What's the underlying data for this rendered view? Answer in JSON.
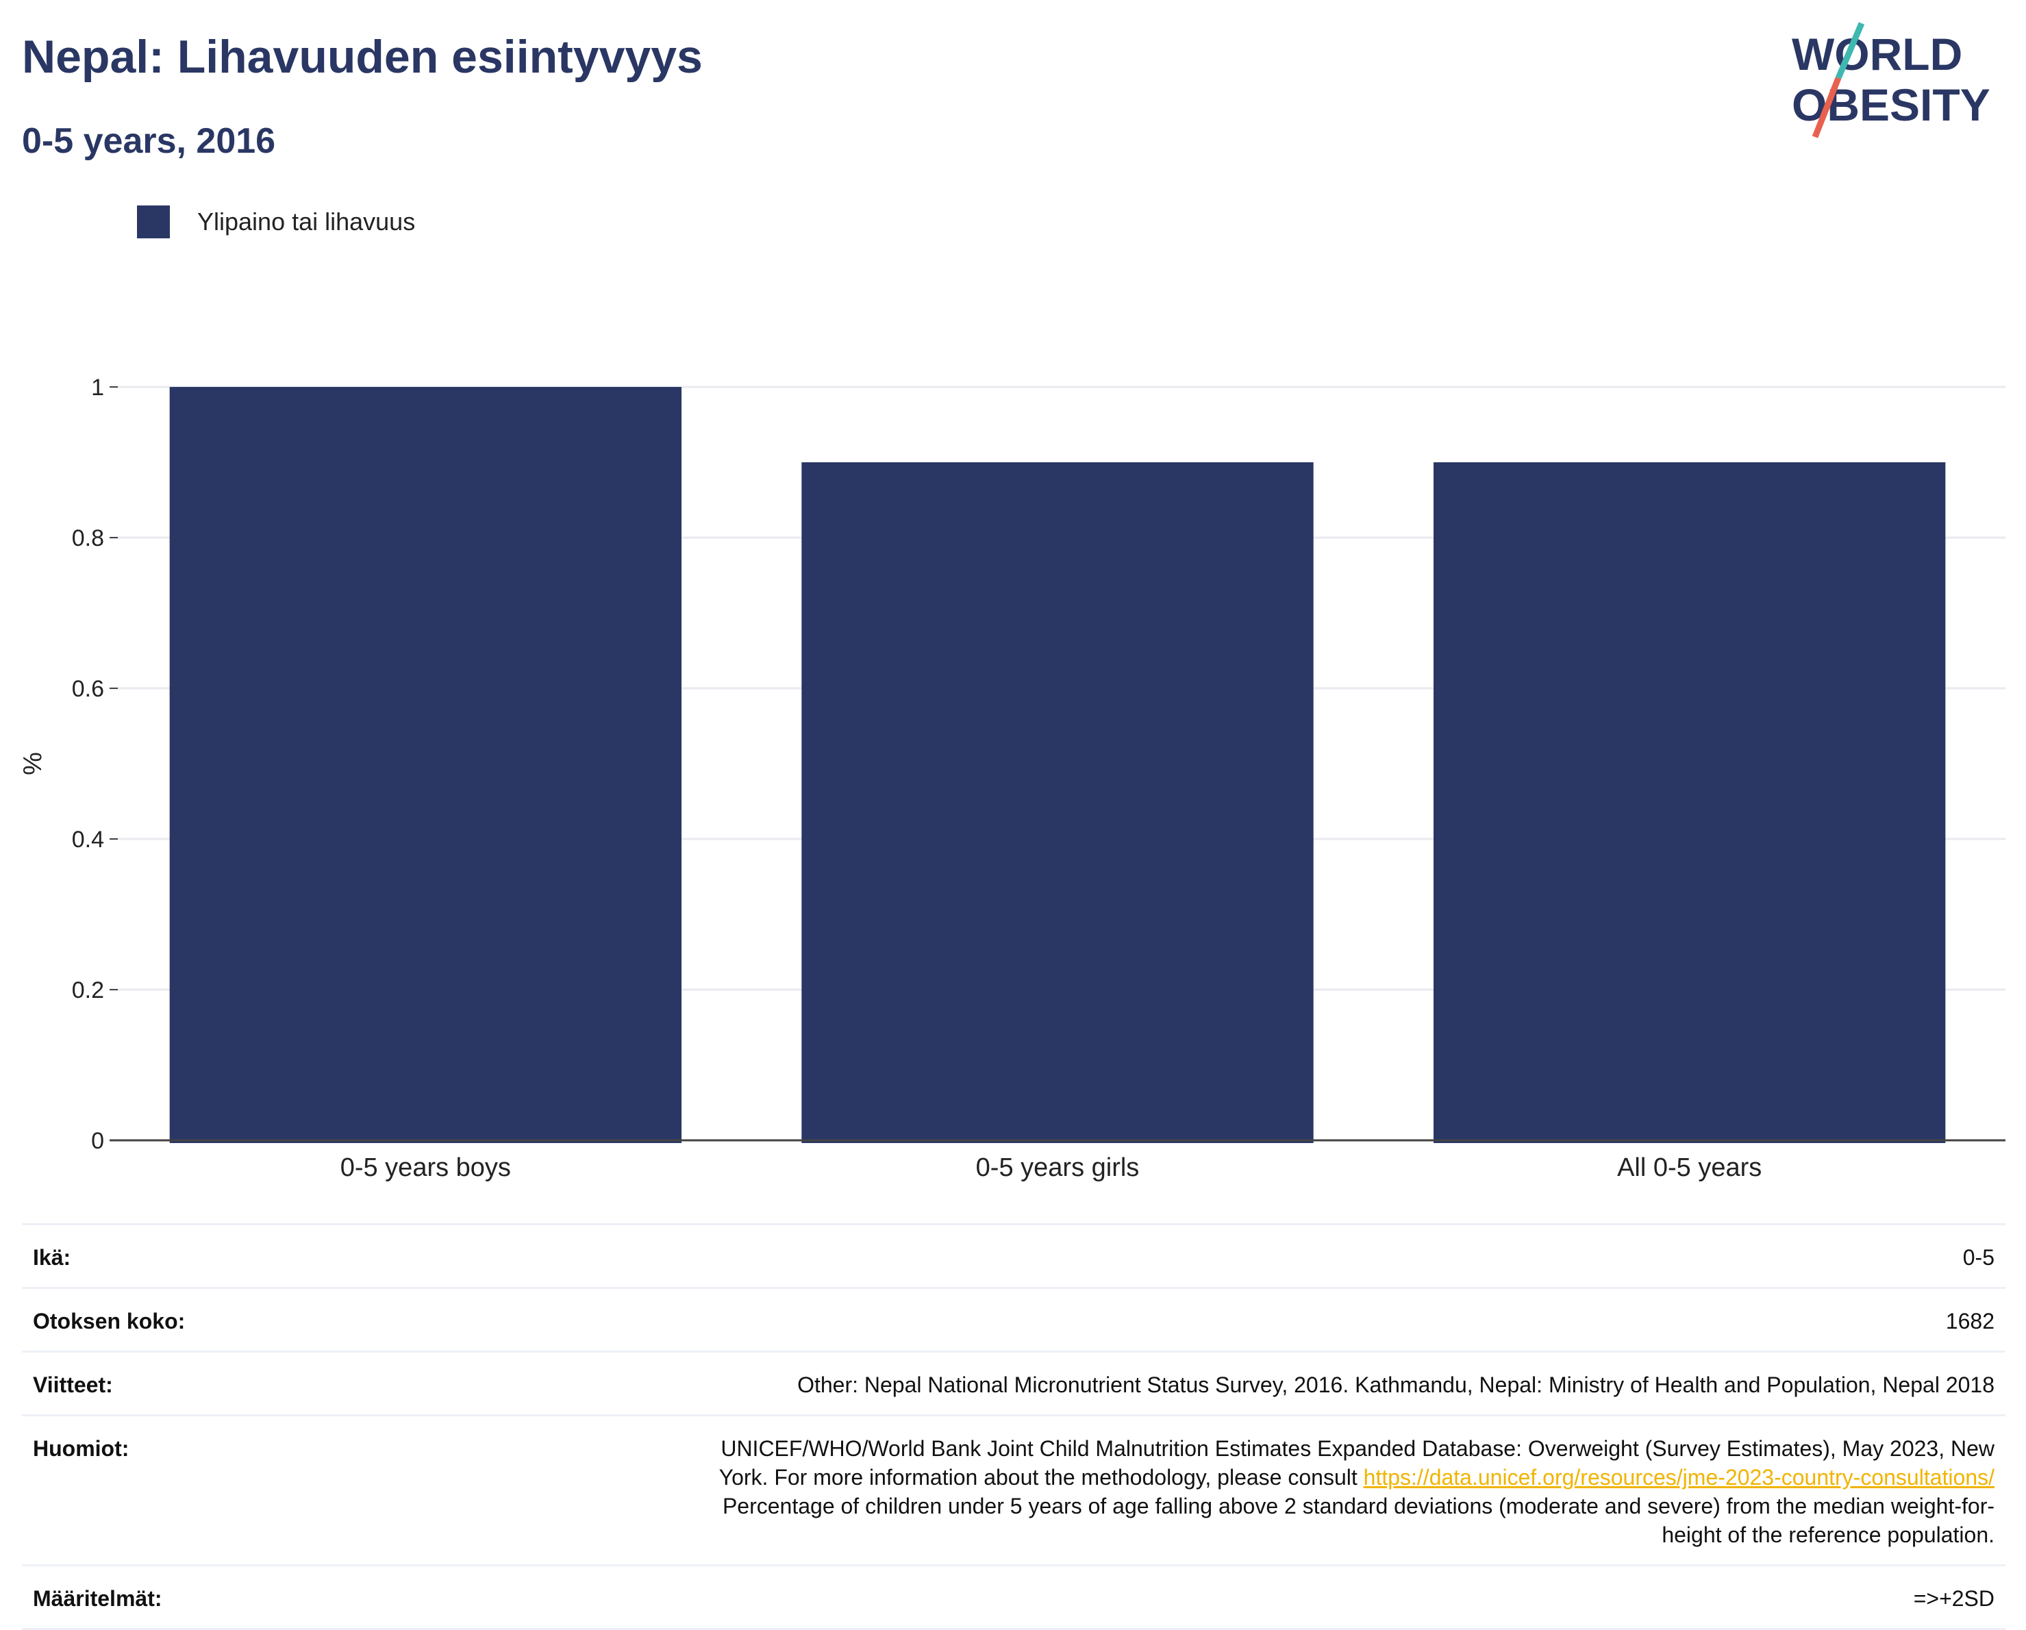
{
  "header": {
    "title": "Nepal: Lihavuuden esiintyvyys",
    "subtitle": "0-5 years, 2016"
  },
  "logo": {
    "line1": "WORLD",
    "line2": "OBESITY",
    "text_color": "#2a3764",
    "slash_top_color": "#3fb8b0",
    "slash_bottom_color": "#e8614f"
  },
  "legend": {
    "label": "Ylipaino tai lihavuus",
    "color": "#2a3764"
  },
  "chart_data": {
    "type": "bar",
    "categories": [
      "0-5 years boys",
      "0-5 years girls",
      "All 0-5 years"
    ],
    "series": [
      {
        "name": "Ylipaino tai lihavuus",
        "values": [
          1.0,
          0.9,
          0.9
        ],
        "color": "#2a3764"
      }
    ],
    "ylabel": "%",
    "ylim": [
      0,
      1
    ],
    "yticks": [
      0,
      0.2,
      0.4,
      0.6,
      0.8,
      1
    ],
    "ytick_labels": [
      "0",
      "0.2",
      "0.4",
      "0.6",
      "0.8",
      "1"
    ],
    "grid": true,
    "legend_position": "top-left"
  },
  "meta": {
    "age_label": "Ikä:",
    "age_value": "0-5",
    "sample_label": "Otoksen koko:",
    "sample_value": "1682",
    "refs_label": "Viitteet:",
    "refs_value": "Other: Nepal National Micronutrient Status Survey, 2016. Kathmandu, Nepal: Ministry of Health and Population, Nepal 2018",
    "notes_label": "Huomiot:",
    "notes_line1": "UNICEF/WHO/World Bank Joint Child Malnutrition Estimates Expanded Database: Overweight (Survey Estimates), May 2023, New",
    "notes_line2_prefix": "York. For more information about the methodology, please consult ",
    "notes_link": "https://data.unicef.org/resources/jme-2023-country-consultations/",
    "notes_line3": "Percentage of children under 5 years of age falling above 2 standard deviations (moderate and severe) from the median weight-for-",
    "notes_line4": "height of the reference population.",
    "defs_label": "Määritelmät:",
    "defs_value": "=>+2SD"
  }
}
